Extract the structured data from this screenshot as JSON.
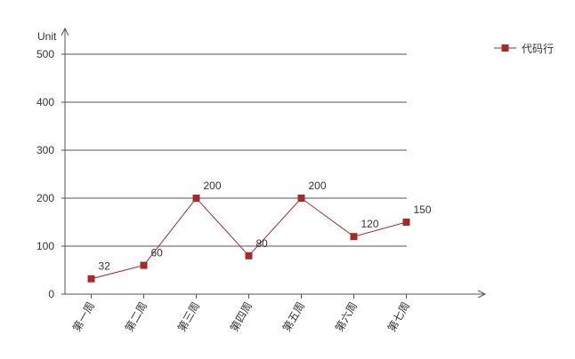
{
  "chart_data": {
    "type": "line",
    "y_axis_label": "Unit",
    "categories": [
      "第一周",
      "第二周",
      "第三周",
      "第四周",
      "第五周",
      "第六周",
      "第七周"
    ],
    "series": [
      {
        "name": "代码行",
        "color": "#a52a2a",
        "values": [
          32,
          60,
          200,
          80,
          200,
          120,
          150
        ]
      }
    ],
    "ylim": [
      0,
      500
    ],
    "yticks": [
      0,
      100,
      200,
      300,
      400,
      500
    ],
    "grid": true,
    "legend": "top-right"
  }
}
